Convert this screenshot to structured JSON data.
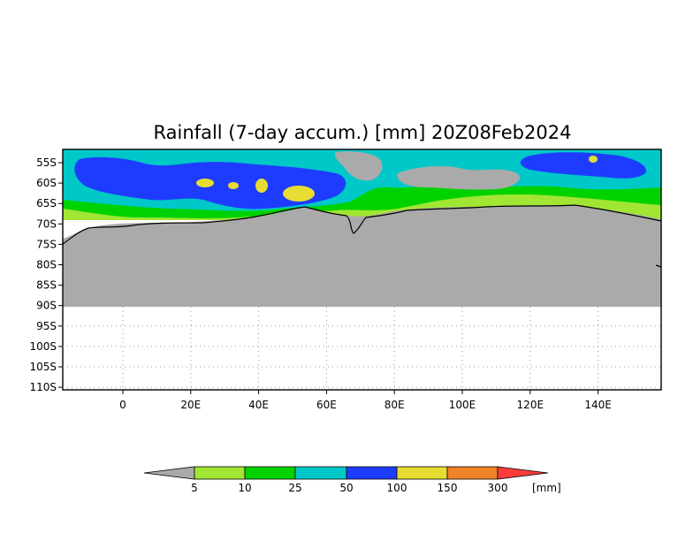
{
  "title": "Rainfall (7-day accum.) [mm] 20Z08Feb2024",
  "map": {
    "lat_ticks": [
      "55S",
      "60S",
      "65S",
      "70S",
      "75S",
      "80S",
      "85S",
      "90S",
      "95S",
      "100S",
      "105S",
      "110S"
    ],
    "lon_ticks": [
      "0",
      "20E",
      "40E",
      "60E",
      "80E",
      "100E",
      "120E",
      "140E"
    ],
    "colors": {
      "land_mask": "#aaaaaa",
      "c5": "#a0e632",
      "c10": "#00d200",
      "c25": "#00c8c8",
      "c50": "#1e3cff",
      "c100": "#e6dc32",
      "c150": "#f08228",
      "c300": "#fa3c3c",
      "below": "#aaaaaa"
    }
  },
  "colorbar": {
    "labels": [
      "5",
      "10",
      "25",
      "50",
      "100",
      "150",
      "300"
    ],
    "units": "[mm]"
  }
}
